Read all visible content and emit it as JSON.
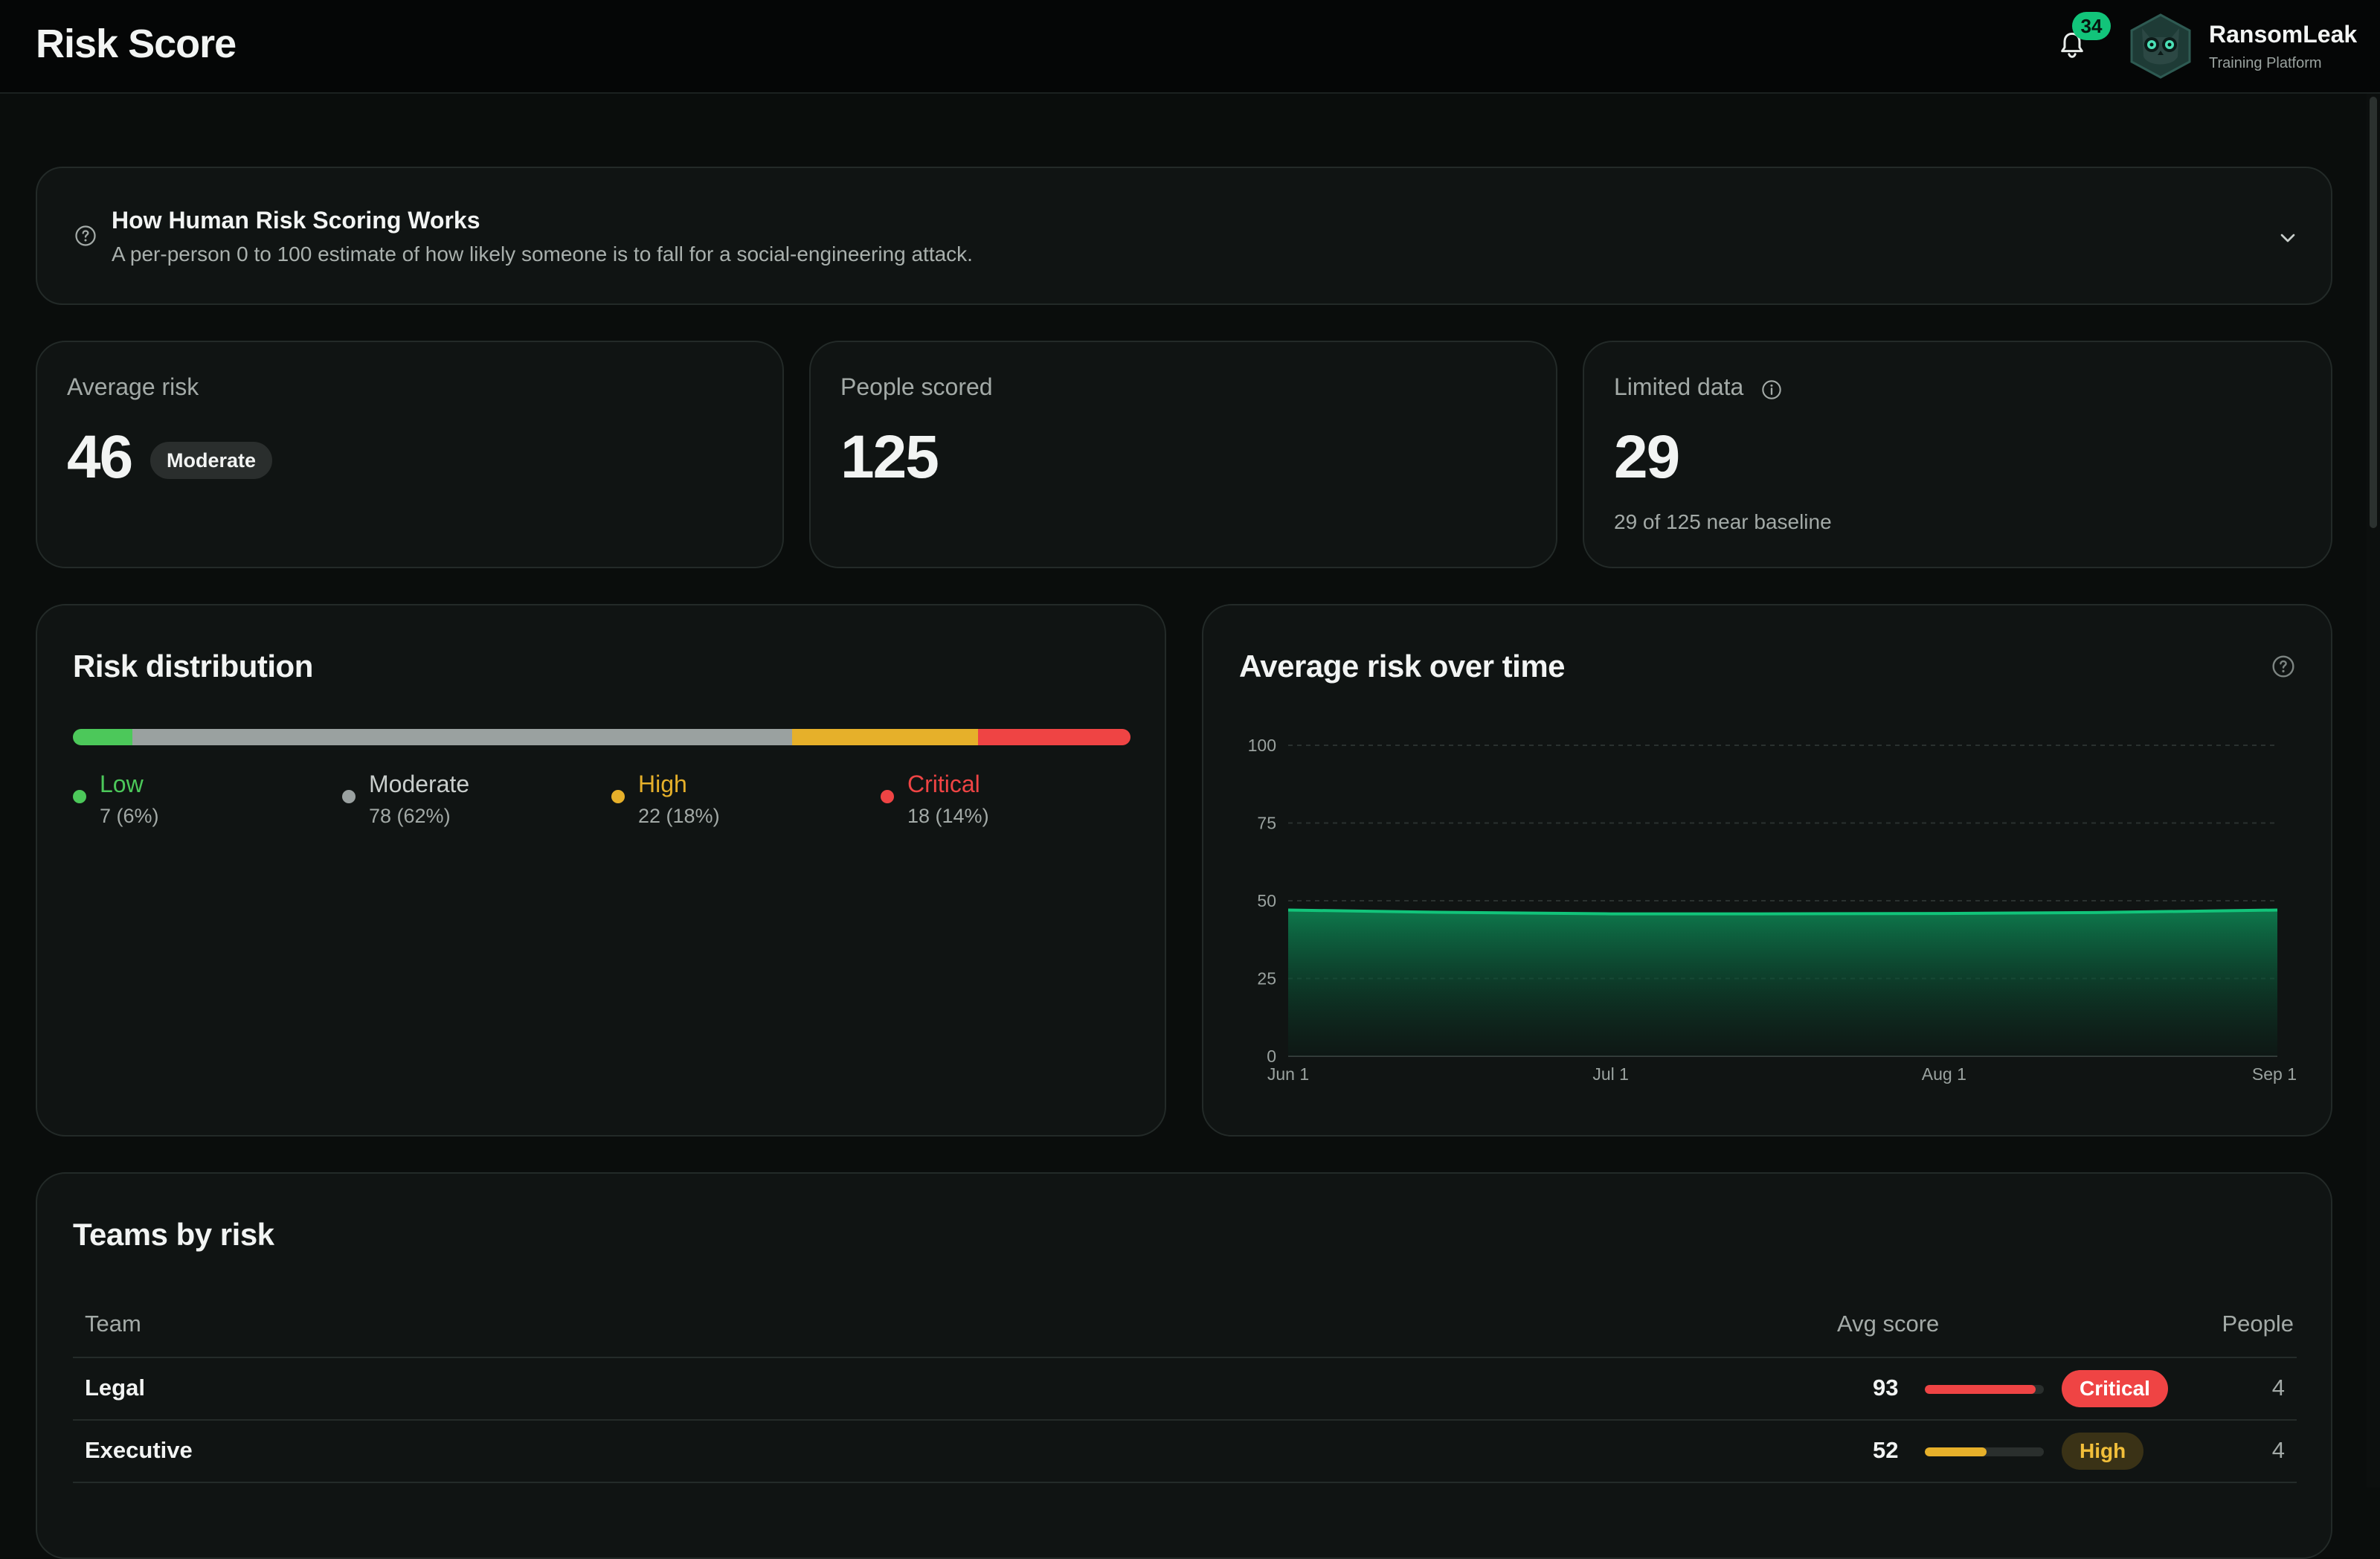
{
  "header": {
    "title": "Risk Score",
    "notification_count": "34",
    "brand_name": "RansomLeak",
    "brand_subtitle": "Training Platform"
  },
  "info": {
    "title": "How Human Risk Scoring Works",
    "description": "A per-person 0 to 100 estimate of how likely someone is to fall for a social-engineering attack."
  },
  "stats": {
    "average_risk": {
      "label": "Average risk",
      "value": "46",
      "badge": "Moderate"
    },
    "people_scored": {
      "label": "People scored",
      "value": "125"
    },
    "limited_data": {
      "label": "Limited data",
      "value": "29",
      "note": "29 of 125 near baseline"
    }
  },
  "distribution": {
    "title": "Risk distribution",
    "segments": [
      {
        "label": "Low",
        "count": "7 (6%)",
        "fraction": 0.056,
        "color": "#4cc85a"
      },
      {
        "label": "Moderate",
        "count": "78 (62%)",
        "fraction": 0.624,
        "color": "#9aa1a0"
      },
      {
        "label": "High",
        "count": "22 (18%)",
        "fraction": 0.176,
        "color": "#e6b02a"
      },
      {
        "label": "Critical",
        "count": "18 (14%)",
        "fraction": 0.144,
        "color": "#ef4444"
      }
    ]
  },
  "chart_data": {
    "type": "area",
    "title": "Average risk over time",
    "x": [
      "2024-06-01",
      "2024-06-15",
      "2024-07-01",
      "2024-07-15",
      "2024-08-01",
      "2024-08-15",
      "2024-09-01"
    ],
    "x_ticks": [
      "Jun 1",
      "Jul 1",
      "Aug 1",
      "Sep 1"
    ],
    "series": [
      {
        "values": [
          47,
          46.3,
          45.8,
          45.8,
          45.9,
          46.2,
          47
        ]
      }
    ],
    "ylim": [
      0,
      100
    ],
    "y_ticks": [
      0,
      25,
      50,
      75,
      100
    ],
    "grid": true,
    "color": "#12c47a"
  },
  "teams": {
    "title": "Teams by risk",
    "columns": {
      "team": "Team",
      "avg_score": "Avg score",
      "people": "People"
    },
    "rows": [
      {
        "team": "Legal",
        "score": "93",
        "score_fraction": 0.93,
        "level": "Critical",
        "people": "4"
      },
      {
        "team": "Executive",
        "score": "52",
        "score_fraction": 0.52,
        "level": "High",
        "people": "4"
      }
    ]
  }
}
